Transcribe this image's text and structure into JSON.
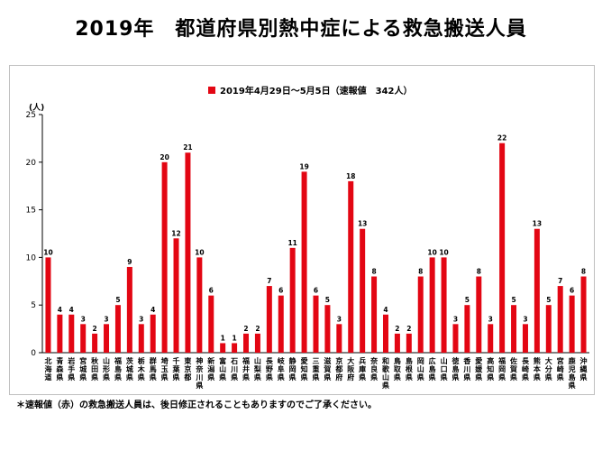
{
  "page": {
    "title": "2019年　都道府県別熱中症による救急搬送人員",
    "footnote": "＊速報値（赤）の救急搬送人員は、後日修正されることもありますのでご了承ください。"
  },
  "chart_data": {
    "type": "bar",
    "title": "",
    "legend": "2019年4月29日～5月5日（速報値　342人）",
    "legend_position": "top",
    "ylabel": "(人)",
    "xlabel": "",
    "ylim": [
      0,
      25
    ],
    "yticks": [
      0,
      5,
      10,
      15,
      20,
      25
    ],
    "grid": false,
    "bar_color": "#e30613",
    "categories": [
      "北海道",
      "青森県",
      "岩手県",
      "宮城県",
      "秋田県",
      "山形県",
      "福島県",
      "茨城県",
      "栃木県",
      "群馬県",
      "埼玉県",
      "千葉県",
      "東京都",
      "神奈川県",
      "新潟県",
      "富山県",
      "石川県",
      "福井県",
      "山梨県",
      "長野県",
      "岐阜県",
      "静岡県",
      "愛知県",
      "三重県",
      "滋賀県",
      "京都府",
      "大阪府",
      "兵庫県",
      "奈良県",
      "和歌山県",
      "鳥取県",
      "島根県",
      "岡山県",
      "広島県",
      "山口県",
      "徳島県",
      "香川県",
      "愛媛県",
      "高知県",
      "福岡県",
      "佐賀県",
      "長崎県",
      "熊本県",
      "大分県",
      "宮崎県",
      "鹿児島県",
      "沖縄県"
    ],
    "series": [
      {
        "values": [
          10,
          4,
          4,
          3,
          2,
          3,
          5,
          9,
          3,
          4,
          20,
          12,
          21,
          10,
          6,
          1,
          1,
          2,
          2,
          7,
          6,
          11,
          19,
          6,
          5,
          3,
          18,
          13,
          8,
          4,
          2,
          2,
          8,
          10,
          10,
          3,
          5,
          8,
          3,
          22,
          5,
          3,
          13,
          5,
          7,
          6,
          8
        ]
      }
    ]
  }
}
